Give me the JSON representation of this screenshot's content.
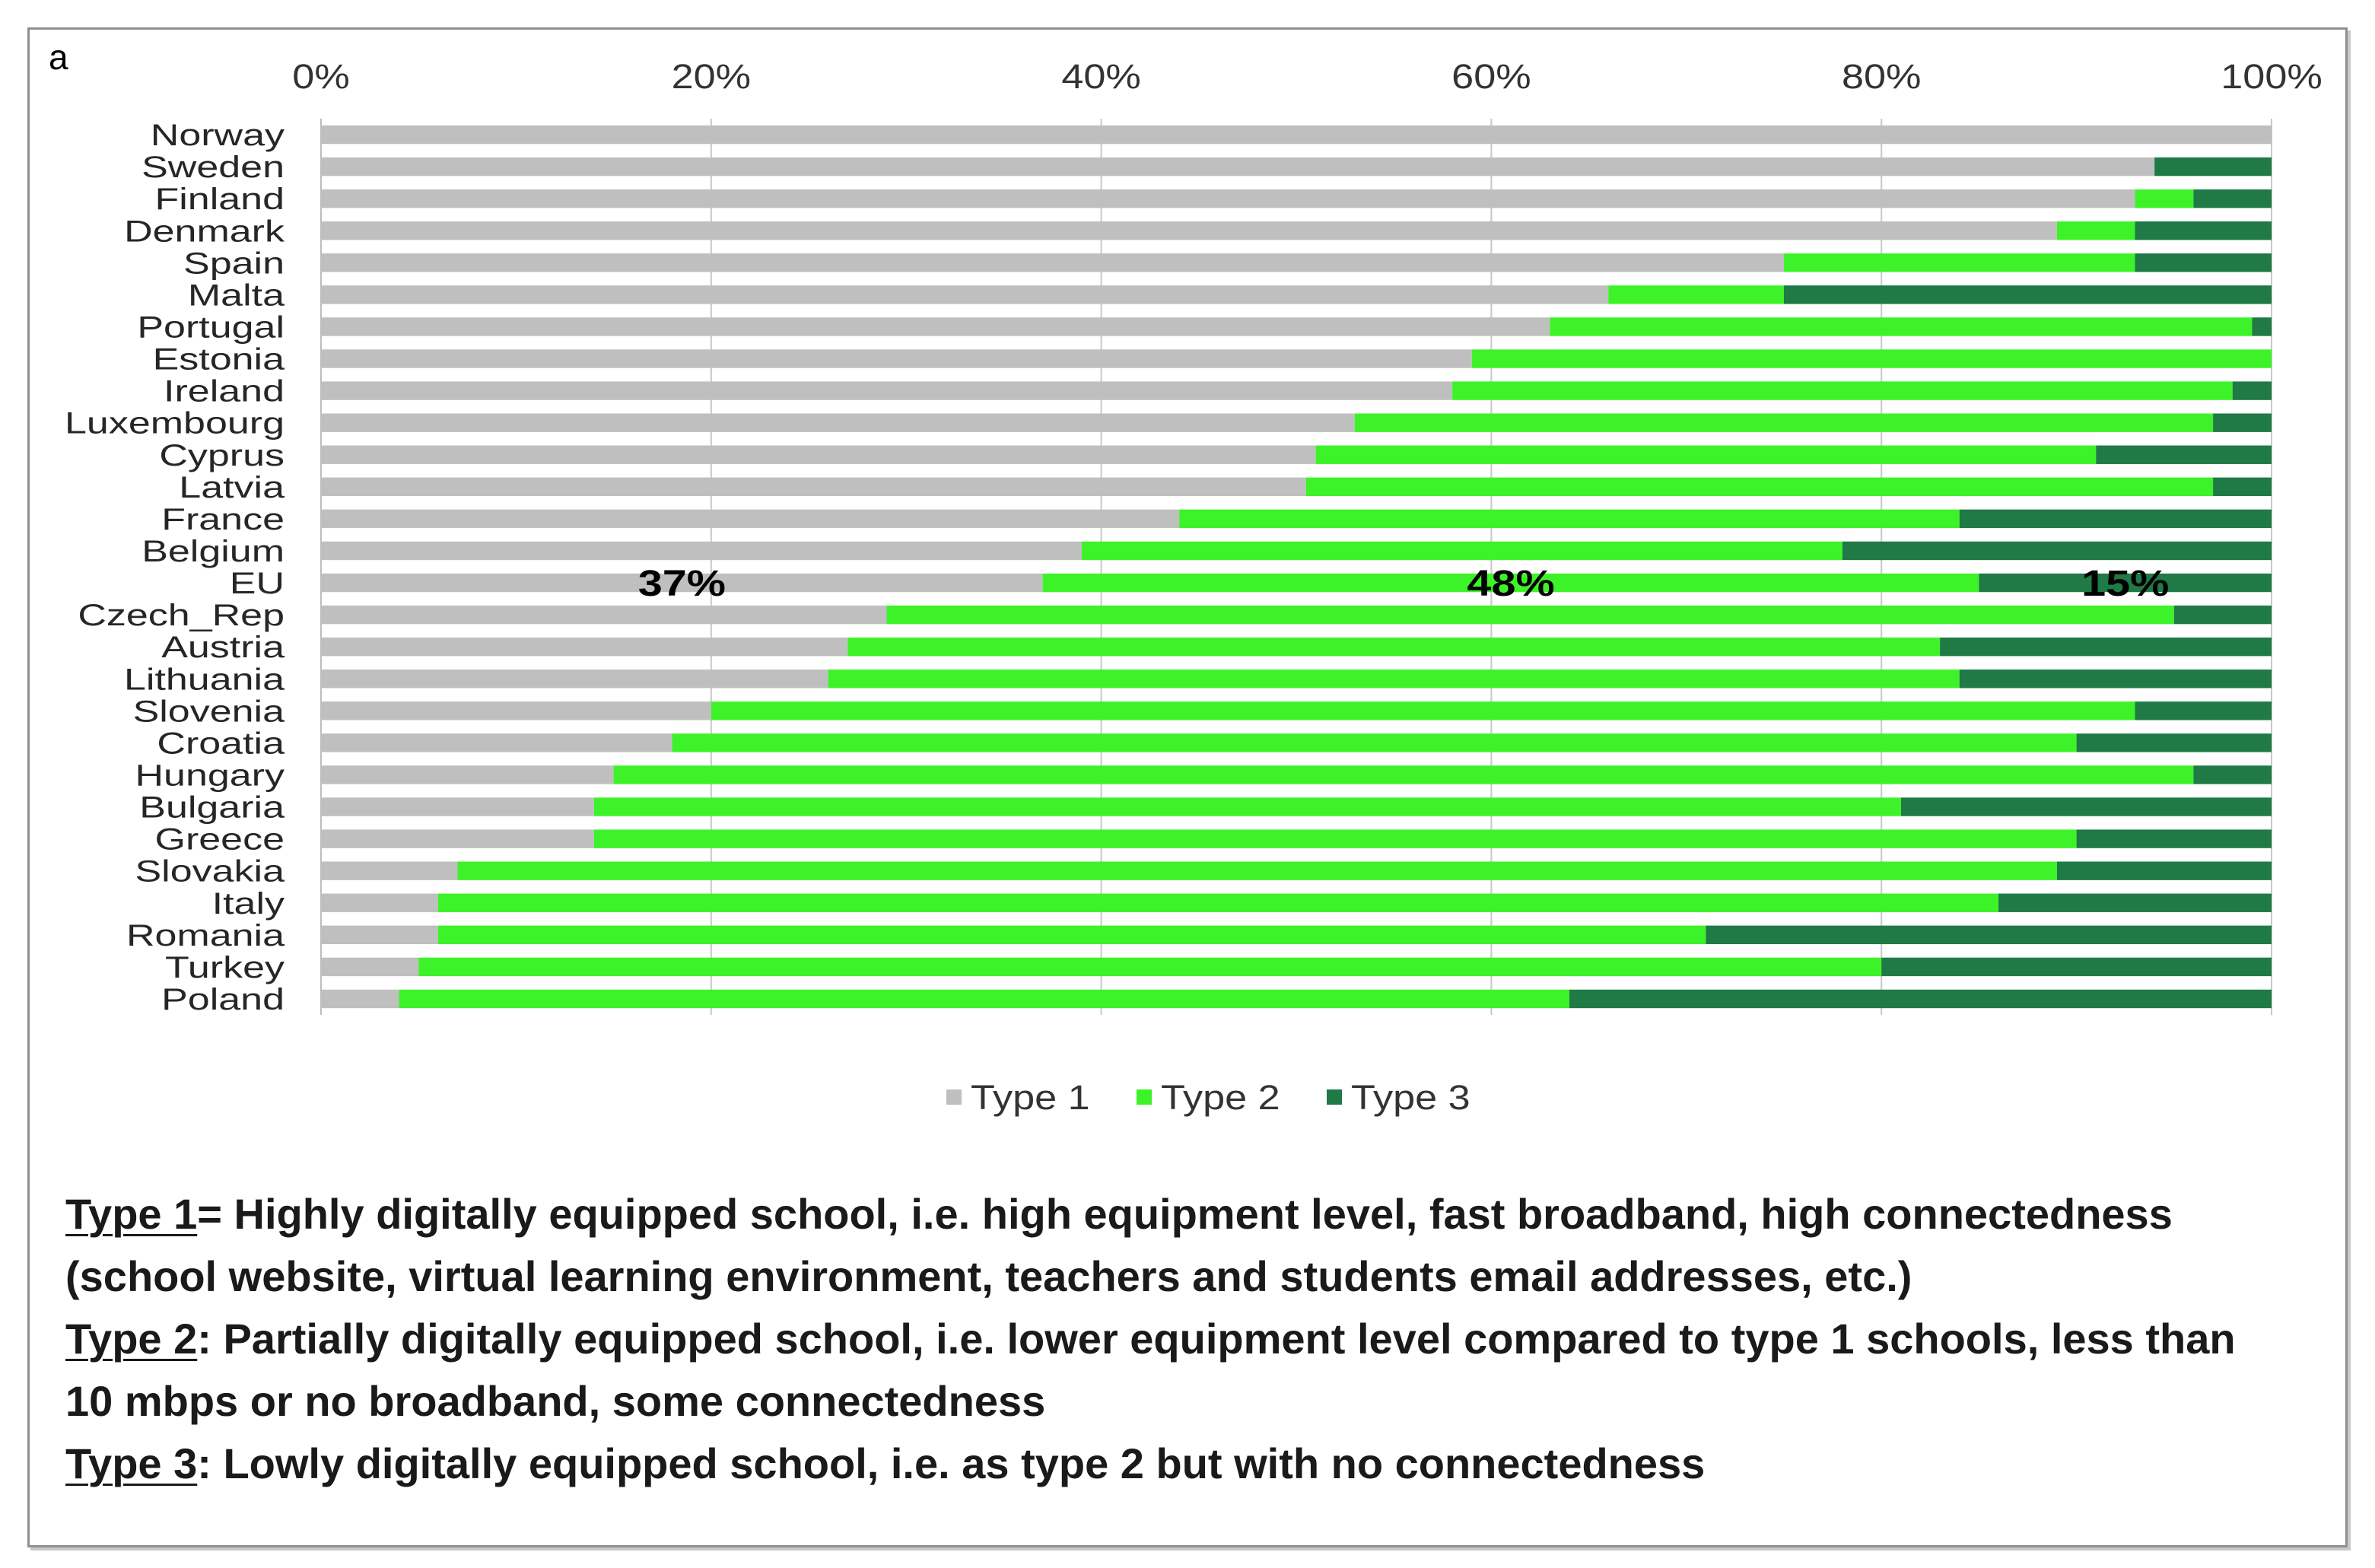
{
  "panel_label": "a",
  "colors": {
    "grid": "#c8c8c8",
    "axis": "#bdbdbd"
  },
  "chart_data": {
    "type": "bar",
    "horizontal": true,
    "stacked": true,
    "xlim": [
      0,
      100
    ],
    "x_tick_values": [
      0,
      20,
      40,
      60,
      80,
      100
    ],
    "x_ticks": [
      "0%",
      "20%",
      "40%",
      "60%",
      "80%",
      "100%"
    ],
    "grid": true,
    "legend_position": "bottom",
    "categories": [
      "Norway",
      "Sweden",
      "Finland",
      "Denmark",
      "Spain",
      "Malta",
      "Portugal",
      "Estonia",
      "Ireland",
      "Luxembourg",
      "Cyprus",
      "Latvia",
      "France",
      "Belgium",
      "EU",
      "Czech_Rep",
      "Austria",
      "Lithuania",
      "Slovenia",
      "Croatia",
      "Hungary",
      "Bulgaria",
      "Greece",
      "Slovakia",
      "Italy",
      "Romania",
      "Turkey",
      "Poland"
    ],
    "series": [
      {
        "name": "Type 1",
        "color": "#bfbfbf",
        "values": [
          100,
          94,
          93,
          89,
          75,
          66,
          63,
          59,
          58,
          53,
          51,
          50.5,
          44,
          39,
          37,
          29,
          27,
          26,
          20,
          18,
          15,
          14,
          14,
          7,
          6,
          6,
          5,
          4
        ]
      },
      {
        "name": "Type 2",
        "color": "#3ef22a",
        "values": [
          0,
          0,
          3,
          4,
          18,
          9,
          36,
          41,
          40,
          44,
          40,
          46.5,
          40,
          39,
          48,
          66,
          56,
          58,
          73,
          72,
          81,
          67,
          76,
          82,
          80,
          65,
          75,
          60
        ]
      },
      {
        "name": "Type 3",
        "color": "#1f7a45",
        "values": [
          0,
          6,
          4,
          7,
          7,
          25,
          1,
          0,
          2,
          3,
          9,
          3,
          16,
          22,
          15,
          5,
          17,
          16,
          7,
          10,
          4,
          19,
          10,
          11,
          14,
          29,
          20,
          36
        ]
      }
    ],
    "annotations": [
      {
        "category": "EU",
        "series": "Type 1",
        "text": "37%"
      },
      {
        "category": "EU",
        "series": "Type 2",
        "text": "48%"
      },
      {
        "category": "EU",
        "series": "Type 3",
        "text": "15%"
      }
    ]
  },
  "definitions": [
    {
      "term": "Type 1",
      "lines": [
        "= Highly digitally equipped school, i.e. high equipment level, fast broadband, high connectedness",
        "(school website, virtual learning environment, teachers and students email addresses, etc.)"
      ]
    },
    {
      "term": "Type 2",
      "lines": [
        ": Partially digitally equipped school, i.e. lower equipment level compared to type 1 schools, less than",
        "10 mbps or no broadband, some connectedness"
      ]
    },
    {
      "term": "Type 3",
      "lines": [
        ": Lowly digitally equipped school, i.e. as type 2 but with no connectedness"
      ]
    }
  ]
}
